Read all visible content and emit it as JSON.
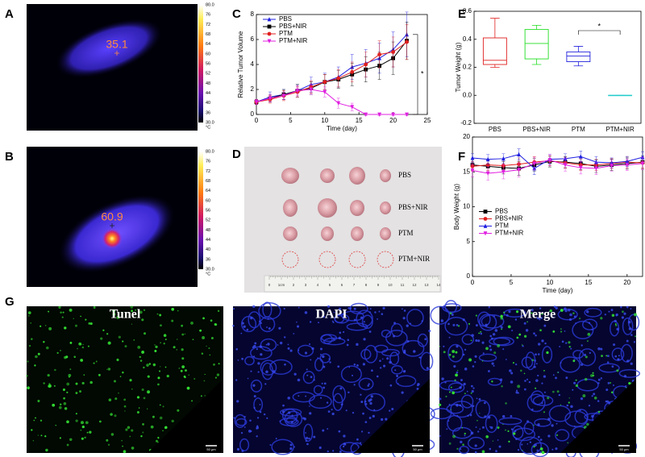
{
  "panels": [
    "A",
    "B",
    "C",
    "D",
    "E",
    "F",
    "G"
  ],
  "thermal": [
    {
      "reading": "35.1"
    },
    {
      "reading": "60.9"
    }
  ],
  "colorbar": {
    "ticks": [
      "80.0",
      "76",
      "72",
      "68",
      "64",
      "60",
      "56",
      "52",
      "48",
      "44",
      "40",
      "36",
      "30.0"
    ],
    "unit": "°C"
  },
  "photo": {
    "groups": [
      "PBS",
      "PBS+NIR",
      "PTM",
      "PTM+NIR"
    ],
    "ruler": [
      "0",
      "1cm",
      "2",
      "3",
      "4",
      "5",
      "6",
      "7",
      "8",
      "9",
      "10",
      "11",
      "12",
      "13",
      "14"
    ]
  },
  "microscopy": {
    "panels": [
      "Tunel",
      "DAPI",
      "Merge"
    ],
    "scale_bar": "50 μm"
  },
  "chart_data": [
    {
      "type": "line",
      "xlabel": "Time (day)",
      "ylabel": "Relative Tumor Volume",
      "annotation": "*",
      "x": [
        0,
        2,
        4,
        6,
        8,
        10,
        12,
        14,
        16,
        18,
        20,
        22
      ],
      "xlim": [
        0,
        25
      ],
      "xticks": [
        0,
        5,
        10,
        15,
        20,
        25
      ],
      "ylim": [
        0,
        8
      ],
      "yticks": [
        0,
        2,
        4,
        6,
        8
      ],
      "legend": "upper left",
      "series": [
        {
          "name": "PBS",
          "color": "#1f1fe0",
          "marker": "triangle",
          "values": [
            1,
            1.4,
            1.6,
            1.9,
            2.4,
            2.6,
            3,
            3.8,
            4.1,
            4.5,
            5.2,
            6.4
          ],
          "errors": [
            0.2,
            0.4,
            0.4,
            0.5,
            0.6,
            0.7,
            0.8,
            1.0,
            1.1,
            1.2,
            1.4,
            1.8
          ]
        },
        {
          "name": "PBS+NIR",
          "color": "#000000",
          "marker": "square",
          "values": [
            1,
            1.3,
            1.6,
            1.9,
            2.1,
            2.6,
            2.8,
            3.2,
            3.6,
            3.9,
            4.5,
            5.9
          ],
          "errors": [
            0.2,
            0.3,
            0.4,
            0.5,
            0.5,
            0.6,
            0.7,
            0.9,
            1.0,
            1.1,
            1.3,
            1.5
          ]
        },
        {
          "name": "PTM",
          "color": "#e01f1f",
          "marker": "circle",
          "values": [
            1,
            1.2,
            1.5,
            1.8,
            2.2,
            2.6,
            2.9,
            3.4,
            4,
            4.8,
            5.0,
            5.8
          ],
          "errors": [
            0.2,
            0.3,
            0.4,
            0.4,
            0.5,
            0.6,
            0.7,
            0.8,
            1.0,
            1.1,
            1.2,
            1.4
          ]
        },
        {
          "name": "PTM+NIR",
          "color": "#e020e0",
          "marker": "triangle-down",
          "values": [
            1,
            1.3,
            1.5,
            1.9,
            2.0,
            1.8,
            0.9,
            0.6,
            0,
            0,
            0,
            0
          ],
          "errors": [
            0.2,
            0.3,
            0.3,
            0.4,
            0.4,
            0.4,
            0.4,
            0.3,
            0.1,
            0.1,
            0.1,
            0.1
          ]
        }
      ]
    },
    {
      "type": "box",
      "ylabel": "Tumor Weight (g)",
      "annotation": "*",
      "categories": [
        "PBS",
        "PBS+NIR",
        "PTM",
        "PTM+NIR"
      ],
      "colors": [
        "#e01f1f",
        "#22dd22",
        "#2222dd",
        "#22cccc"
      ],
      "ylim": [
        -0.2,
        0.6
      ],
      "yticks": [
        -0.2,
        {
          "value": 0,
          "label": "0.0"
        },
        0.2,
        0.4,
        0.6
      ],
      "boxes": [
        {
          "min": 0.2,
          "q1": 0.22,
          "median": 0.25,
          "q3": 0.41,
          "max": 0.55
        },
        {
          "min": 0.22,
          "q1": 0.26,
          "median": 0.37,
          "q3": 0.47,
          "max": 0.5
        },
        {
          "min": 0.21,
          "q1": 0.24,
          "median": 0.28,
          "q3": 0.31,
          "max": 0.35
        },
        {
          "min": 0,
          "q1": 0,
          "median": 0,
          "q3": 0,
          "max": 0
        }
      ]
    },
    {
      "type": "line",
      "xlabel": "Time (day)",
      "ylabel": "Body Weight (g)",
      "x": [
        0,
        2,
        4,
        6,
        8,
        10,
        12,
        14,
        16,
        18,
        20,
        22
      ],
      "xlim": [
        0,
        22
      ],
      "xticks": [
        0,
        5,
        10,
        15,
        20
      ],
      "ylim": [
        0,
        20
      ],
      "yticks": [
        0,
        5,
        10,
        15,
        20
      ],
      "legend": "center left",
      "series": [
        {
          "name": "PBS",
          "color": "#000000",
          "marker": "square",
          "values": [
            16,
            15.8,
            15.6,
            15.5,
            16,
            16.5,
            16.4,
            16.2,
            15.8,
            16,
            16.2,
            16.4
          ],
          "errors": [
            0.8,
            0.9,
            0.9,
            1,
            0.9,
            0.8,
            0.8,
            0.9,
            0.9,
            0.8,
            0.8,
            0.9
          ]
        },
        {
          "name": "PBS+NIR",
          "color": "#e01f1f",
          "marker": "circle",
          "values": [
            15.8,
            16,
            15.9,
            16.1,
            16.4,
            16.6,
            16.3,
            16,
            16,
            16.2,
            16.4,
            16.3
          ],
          "errors": [
            0.7,
            0.8,
            0.8,
            0.9,
            0.8,
            0.7,
            0.8,
            0.8,
            0.8,
            0.7,
            0.8,
            0.8
          ]
        },
        {
          "name": "PTM",
          "color": "#1f1fe0",
          "marker": "triangle",
          "values": [
            17,
            16.8,
            16.9,
            17.5,
            15.5,
            16.8,
            16.9,
            17.2,
            16.4,
            16.3,
            16.5,
            17.1
          ],
          "errors": [
            0.6,
            0.7,
            0.7,
            0.8,
            0.9,
            0.7,
            0.7,
            0.8,
            0.8,
            0.7,
            0.7,
            0.8
          ]
        },
        {
          "name": "PTM+NIR",
          "color": "#e020e0",
          "marker": "triangle-down",
          "values": [
            15.2,
            14.8,
            15,
            15.3,
            16.2,
            16.7,
            16,
            15.6,
            15.5,
            15.9,
            16,
            16.2
          ],
          "errors": [
            0.9,
            1,
            1,
            1,
            0.9,
            0.8,
            0.9,
            0.9,
            0.9,
            0.8,
            0.8,
            0.9
          ]
        }
      ]
    }
  ]
}
